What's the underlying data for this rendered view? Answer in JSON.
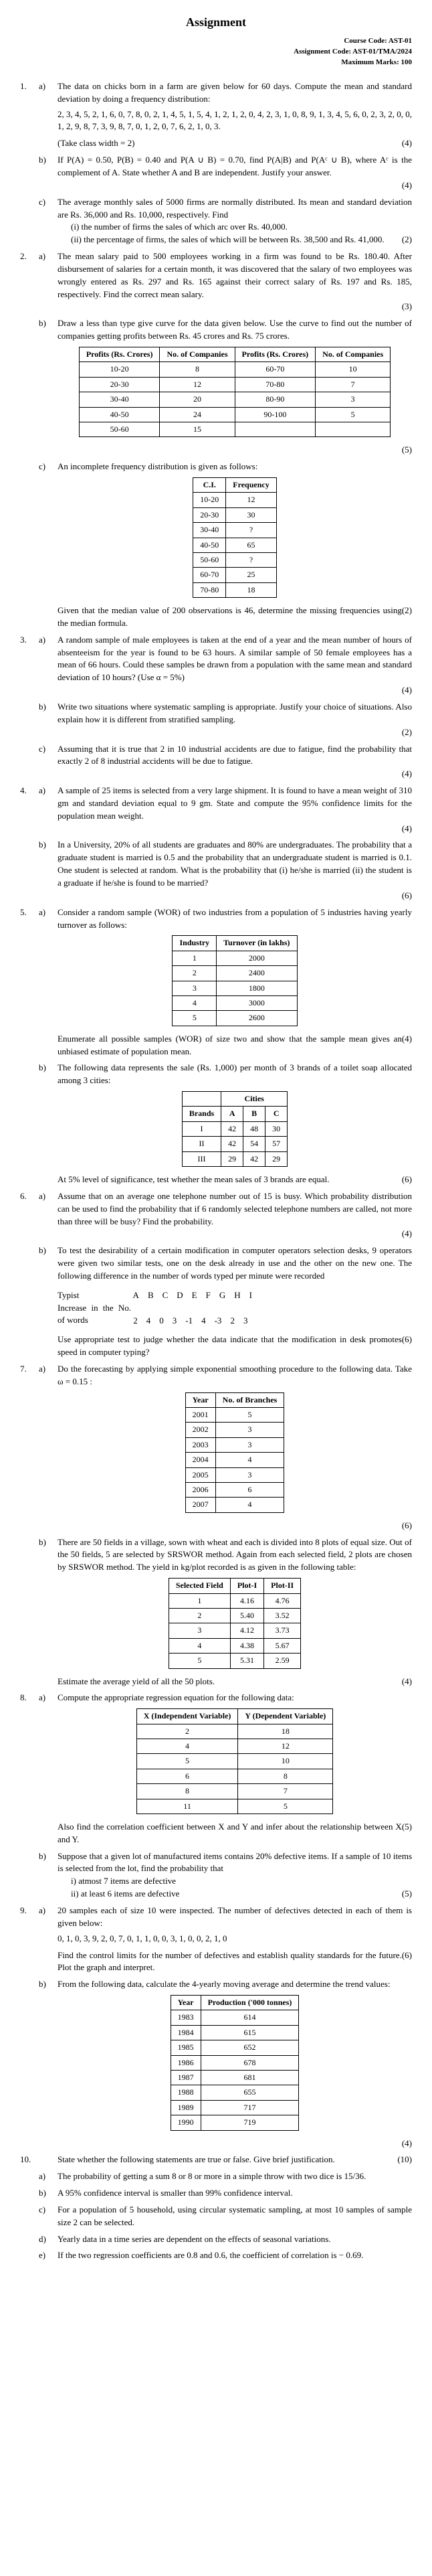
{
  "title": "Assignment",
  "header": {
    "course_code": "Course Code: AST-01",
    "assignment_code": "Assignment Code: AST-01/TMA/2024",
    "max_marks": "Maximum Marks: 100"
  },
  "q1": {
    "num": "1.",
    "a": {
      "sub": "a)",
      "text": "The data on chicks born in a farm are given below for 60 days. Compute the mean and standard deviation by doing a frequency distribution:",
      "data": "2, 3, 4, 5, 2, 1, 6, 0, 7, 8, 0, 2, 1, 4, 5, 1, 5, 4, 1, 2, 1, 2, 0, 4, 2, 3, 1, 0, 8, 9, 1, 3, 4, 5, 6, 0, 2, 3, 2, 0, 0, 1, 2, 9, 8, 7, 3, 9, 8, 7, 0, 1, 2, 0, 7, 6, 2, 1, 0, 3.",
      "note": "(Take class width = 2)",
      "marks": "(4)"
    },
    "b": {
      "sub": "b)",
      "text": "If P(A) = 0.50, P(B) = 0.40 and P(A ∪ B) = 0.70, find P(A|B) and P(Aᶜ ∪ B), where Aᶜ is the complement of A. State whether A and B are independent. Justify your answer.",
      "marks": "(4)"
    },
    "c": {
      "sub": "c)",
      "text": "The average monthly sales of 5000 firms are normally distributed. Its mean and standard deviation are Rs. 36,000 and Rs. 10,000, respectively. Find",
      "i": "(i)   the number of firms the sales of which arc over Rs. 40,000.",
      "ii": "(ii)  the percentage of firms, the sales of which will be between Rs. 38,500 and Rs. 41,000.",
      "marks": "(2)"
    }
  },
  "q2": {
    "num": "2.",
    "a": {
      "sub": "a)",
      "text": "The mean salary paid to 500 employees working in a firm was found to be Rs. 180.40. After disbursement of salaries for a certain month, it was discovered that the salary of two employees was wrongly entered as Rs. 297 and Rs. 165 against their correct salary of Rs. 197 and Rs. 185, respectively. Find the correct mean salary.",
      "marks": "(3)"
    },
    "b": {
      "sub": "b)",
      "text": "Draw a less than type give curve for the data given below. Use the curve to find out the number of companies getting profits between Rs. 45 crores and Rs. 75 crores.",
      "table": {
        "headers": [
          "Profits (Rs. Crores)",
          "No. of Companies",
          "Profits (Rs. Crores)",
          "No. of Companies"
        ],
        "rows": [
          [
            "10-20",
            "8",
            "60-70",
            "10"
          ],
          [
            "20-30",
            "12",
            "70-80",
            "7"
          ],
          [
            "30-40",
            "20",
            "80-90",
            "3"
          ],
          [
            "40-50",
            "24",
            "90-100",
            "5"
          ],
          [
            "50-60",
            "15",
            "",
            ""
          ]
        ]
      },
      "marks": "(5)"
    },
    "c": {
      "sub": "c)",
      "text": "An incomplete frequency distribution is given as follows:",
      "table": {
        "headers": [
          "C.I.",
          "Frequency"
        ],
        "rows": [
          [
            "10-20",
            "12"
          ],
          [
            "20-30",
            "30"
          ],
          [
            "30-40",
            "?"
          ],
          [
            "40-50",
            "65"
          ],
          [
            "50-60",
            "?"
          ],
          [
            "60-70",
            "25"
          ],
          [
            "70-80",
            "18"
          ]
        ]
      },
      "after": "Given that the median value of 200 observations is 46, determine the missing frequencies using the median formula.",
      "marks": "(2)"
    }
  },
  "q3": {
    "num": "3.",
    "a": {
      "sub": "a)",
      "text": "A random sample of male employees is taken at the end of a year and the mean number of hours of absenteeism for the year is found to be 63 hours. A similar sample of 50 female employees has a mean of 66 hours. Could these samples be drawn from a population with the same mean and standard deviation of 10 hours? (Use α = 5%)",
      "marks": "(4)"
    },
    "b": {
      "sub": "b)",
      "text": "Write two situations where systematic sampling is appropriate. Justify your choice of situations. Also explain how it is different from stratified sampling.",
      "marks": "(2)"
    },
    "c": {
      "sub": "c)",
      "text": "Assuming that it is true that 2 in 10 industrial accidents are due to fatigue, find the probability that exactly 2 of 8 industrial accidents will be due to fatigue.",
      "marks": "(4)"
    }
  },
  "q4": {
    "num": "4.",
    "a": {
      "sub": "a)",
      "text": "A sample of 25 items is selected from a very large shipment. It is found to have a mean weight of 310 gm and standard deviation equal to 9 gm. State and compute the 95% confidence limits for the population mean weight.",
      "marks": "(4)"
    },
    "b": {
      "sub": "b)",
      "text": "In a University, 20% of all students are graduates and 80% are undergraduates. The probability that a graduate student is married is 0.5 and the probability that an undergraduate student is married is 0.1. One student is selected at random. What is the probability that (i) he/she is married (ii) the student is a graduate if he/she is found to be married?",
      "marks": "(6)"
    }
  },
  "q5": {
    "num": "5.",
    "a": {
      "sub": "a)",
      "text": "Consider a random sample (WOR) of two industries from a population of 5 industries having yearly turnover as follows:",
      "table": {
        "headers": [
          "Industry",
          "Turnover (in lakhs)"
        ],
        "rows": [
          [
            "1",
            "2000"
          ],
          [
            "2",
            "2400"
          ],
          [
            "3",
            "1800"
          ],
          [
            "4",
            "3000"
          ],
          [
            "5",
            "2600"
          ]
        ]
      },
      "after": "Enumerate all possible samples (WOR) of size two and show that the sample mean gives an unbiased estimate of population mean.",
      "marks": "(4)"
    },
    "b": {
      "sub": "b)",
      "text": "The following data represents the sale (Rs. 1,000) per month of 3 brands of a toilet soap allocated among 3 cities:",
      "table": {
        "title": "Cities",
        "headers": [
          "Brands",
          "A",
          "B",
          "C"
        ],
        "rows": [
          [
            "I",
            "42",
            "48",
            "30"
          ],
          [
            "II",
            "42",
            "54",
            "57"
          ],
          [
            "III",
            "29",
            "42",
            "29"
          ]
        ]
      },
      "after": "At 5% level of significance, test whether the mean sales of 3 brands are equal.",
      "marks": "(6)"
    }
  },
  "q6": {
    "num": "6.",
    "a": {
      "sub": "a)",
      "text": "Assume that on an average one telephone number out of 15 is busy. Which probability distribution can be used to find the probability that if 6 randomly selected telephone numbers are called, not more than three will be busy? Find the probability.",
      "marks": "(4)"
    },
    "b": {
      "sub": "b)",
      "text_before": "To test the desirability of a certain modification in computer operators selection desks, 9 operators were given two similar tests, one on the desk already in use and the other on the new one. The following difference in the number of words typed per minute were recorded",
      "typist_label": "Typist",
      "typist_vals": [
        "A",
        "B",
        "C",
        "D",
        "E",
        "F",
        "G",
        "H",
        "I"
      ],
      "inc_label": "Increase in the No. of words",
      "inc_vals": [
        "2",
        "4",
        "0",
        "3",
        "-1",
        "4",
        "-3",
        "2",
        "3"
      ],
      "after": "Use appropriate test to judge whether the data indicate that the modification in desk promotes speed in computer typing?",
      "marks": "(6)"
    }
  },
  "q7": {
    "num": "7.",
    "a": {
      "sub": "a)",
      "text": "Do the forecasting by applying simple exponential smoothing procedure to the following data. Take ω = 0.15 :",
      "table": {
        "headers": [
          "Year",
          "No. of Branches"
        ],
        "rows": [
          [
            "2001",
            "5"
          ],
          [
            "2002",
            "3"
          ],
          [
            "2003",
            "3"
          ],
          [
            "2004",
            "4"
          ],
          [
            "2005",
            "3"
          ],
          [
            "2006",
            "6"
          ],
          [
            "2007",
            "4"
          ]
        ]
      },
      "marks": "(6)"
    },
    "b": {
      "sub": "b)",
      "text": "There are 50 fields in a village, sown with wheat and each is divided into 8 plots of equal size. Out of the 50 fields, 5 are selected by SRSWOR method. Again from each selected field, 2 plots are chosen by SRSWOR method. The yield in kg/plot recorded is as given in the following table:",
      "table": {
        "headers": [
          "Selected Field",
          "Plot-I",
          "Plot-II"
        ],
        "rows": [
          [
            "1",
            "4.16",
            "4.76"
          ],
          [
            "2",
            "5.40",
            "3.52"
          ],
          [
            "3",
            "4.12",
            "3.73"
          ],
          [
            "4",
            "4.38",
            "5.67"
          ],
          [
            "5",
            "5.31",
            "2.59"
          ]
        ]
      },
      "after": "Estimate the average yield of all the 50 plots.",
      "marks": "(4)"
    }
  },
  "q8": {
    "num": "8.",
    "a": {
      "sub": "a)",
      "text": "Compute the appropriate regression equation for the following data:",
      "table": {
        "headers": [
          "X (Independent Variable)",
          "Y (Dependent Variable)"
        ],
        "rows": [
          [
            "2",
            "18"
          ],
          [
            "4",
            "12"
          ],
          [
            "5",
            "10"
          ],
          [
            "6",
            "8"
          ],
          [
            "8",
            "7"
          ],
          [
            "11",
            "5"
          ]
        ]
      },
      "after": "Also find the correlation coefficient between X and Y and infer about the relationship between X and Y.",
      "marks": "(5)"
    },
    "b": {
      "sub": "b)",
      "text": "Suppose that a given lot of manufactured items contains 20% defective items. If a sample of 10 items is selected from the lot, find the probability that",
      "i": "i)   atmost 7 items are defective",
      "ii": "ii)  at least 6 items are defective",
      "marks": "(5)"
    }
  },
  "q9": {
    "num": "9.",
    "a": {
      "sub": "a)",
      "text": "20 samples each of size 10 were inspected. The number of defectives detected in each of them is given below:",
      "data": "0, 1, 0, 3, 9, 2, 0, 7, 0, 1, 1, 0, 0, 3, 1, 0, 0, 2, 1, 0",
      "after": "Find the control limits for the number of defectives and establish quality standards for the future. Plot the graph and interpret.",
      "marks": "(6)"
    },
    "b": {
      "sub": "b)",
      "text": "From the following data, calculate the 4-yearly moving average and determine the trend values:",
      "table": {
        "headers": [
          "Year",
          "Production ('000 tonnes)"
        ],
        "rows": [
          [
            "1983",
            "614"
          ],
          [
            "1984",
            "615"
          ],
          [
            "1985",
            "652"
          ],
          [
            "1986",
            "678"
          ],
          [
            "1987",
            "681"
          ],
          [
            "1988",
            "655"
          ],
          [
            "1989",
            "717"
          ],
          [
            "1990",
            "719"
          ]
        ]
      },
      "marks": "(4)"
    }
  },
  "q10": {
    "num": "10.",
    "intro": "State whether the following statements are true or false. Give brief justification.",
    "a": {
      "sub": "a)",
      "text": "The probability of getting a sum 8 or 8 or more in a simple throw with two dice is 15/36.",
      "marks": "(10)"
    },
    "b": {
      "sub": "b)",
      "text": "A 95% confidence interval is smaller than 99% confidence interval."
    },
    "c": {
      "sub": "c)",
      "text": "For a population of 5 household, using circular systematic sampling, at most 10 samples of sample size 2 can be selected."
    },
    "d": {
      "sub": "d)",
      "text": "Yearly data in a time series are dependent on the effects of seasonal variations."
    },
    "e": {
      "sub": "e)",
      "text": "If the two regression coefficients are 0.8 and 0.6, the coefficient of correlation is − 0.69."
    }
  }
}
